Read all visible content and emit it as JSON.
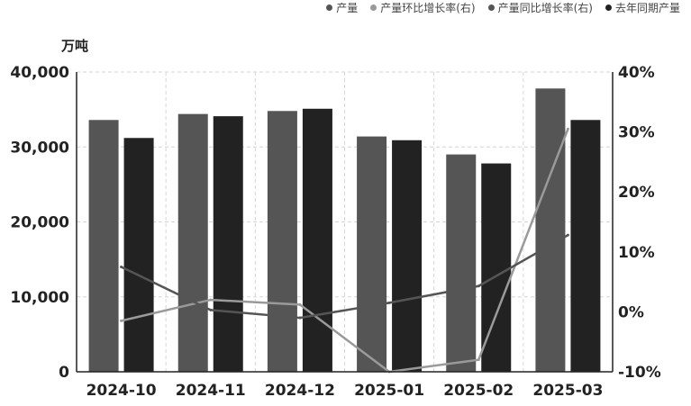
{
  "chart_data": {
    "type": "bar",
    "categories": [
      "2024-10",
      "2024-11",
      "2024-12",
      "2025-01",
      "2025-02",
      "2025-03"
    ],
    "ylabel": "万吨",
    "ylim": [
      0,
      40000
    ],
    "y_ticks": [
      "0",
      "10,000",
      "20,000",
      "30,000",
      "40,000"
    ],
    "y2lim": [
      -10,
      40
    ],
    "y2_ticks": [
      "-10%",
      "0%",
      "10%",
      "20%",
      "30%",
      "40%"
    ],
    "grid": true,
    "legend_position": "top-right",
    "series": [
      {
        "name": "产量",
        "type": "bar",
        "axis": "left",
        "color": "#555555",
        "values": [
          33600,
          34400,
          34800,
          31400,
          29000,
          37800
        ]
      },
      {
        "name": "产量环比增长率(右)",
        "type": "line",
        "axis": "right",
        "color": "#9a9a9a",
        "values": [
          -1.5,
          2.0,
          1.2,
          -10.0,
          -8.0,
          30.5
        ]
      },
      {
        "name": "产量同比增长率(右)",
        "type": "line",
        "axis": "right",
        "color": "#555555",
        "values": [
          7.5,
          0.3,
          -1.0,
          1.5,
          4.3,
          12.8
        ]
      },
      {
        "name": "去年同期产量",
        "type": "bar",
        "axis": "left",
        "color": "#222222",
        "values": [
          31200,
          34100,
          35100,
          30900,
          27800,
          33600
        ]
      }
    ]
  }
}
